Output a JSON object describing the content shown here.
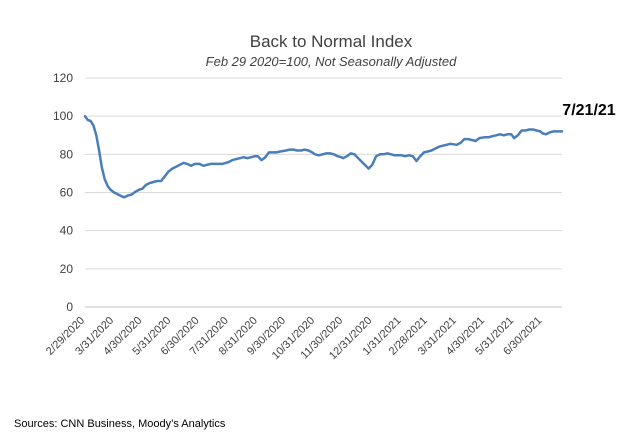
{
  "chart_data": {
    "type": "line",
    "title": "Back to Normal Index",
    "subtitle": "Feb 29 2020=100, Not Seasonally Adjusted",
    "xlabel": "",
    "ylabel": "",
    "ylim": [
      0,
      120
    ],
    "yticks": [
      0,
      20,
      40,
      60,
      80,
      100,
      120
    ],
    "xticks": [
      "2/29/2020",
      "3/31/2020",
      "4/30/2020",
      "5/31/2020",
      "6/30/2020",
      "7/31/2020",
      "8/31/2020",
      "9/30/2020",
      "10/31/2020",
      "11/30/2020",
      "12/31/2020",
      "1/31/2021",
      "2/28/2021",
      "3/31/2021",
      "4/30/2021",
      "5/31/2021",
      "6/30/2021"
    ],
    "x_start": "2020-02-29",
    "x_end": "2021-07-21",
    "grid": true,
    "color": "#4a7ebb",
    "series": [
      {
        "points": [
          [
            "2020-02-29",
            100
          ],
          [
            "2020-03-03",
            98
          ],
          [
            "2020-03-06",
            97.5
          ],
          [
            "2020-03-09",
            95
          ],
          [
            "2020-03-12",
            90
          ],
          [
            "2020-03-15",
            82
          ],
          [
            "2020-03-18",
            73
          ],
          [
            "2020-03-21",
            67
          ],
          [
            "2020-03-24",
            63.5
          ],
          [
            "2020-03-27",
            61.5
          ],
          [
            "2020-03-31",
            60
          ],
          [
            "2020-04-04",
            59
          ],
          [
            "2020-04-08",
            58
          ],
          [
            "2020-04-11",
            57.5
          ],
          [
            "2020-04-15",
            58.5
          ],
          [
            "2020-04-19",
            59
          ],
          [
            "2020-04-23",
            60.5
          ],
          [
            "2020-04-27",
            61.5
          ],
          [
            "2020-04-30",
            62
          ],
          [
            "2020-05-04",
            64
          ],
          [
            "2020-05-08",
            65
          ],
          [
            "2020-05-12",
            65.5
          ],
          [
            "2020-05-16",
            66
          ],
          [
            "2020-05-20",
            66
          ],
          [
            "2020-05-24",
            68.5
          ],
          [
            "2020-05-28",
            71
          ],
          [
            "2020-06-01",
            72.5
          ],
          [
            "2020-06-05",
            73.5
          ],
          [
            "2020-06-09",
            74.5
          ],
          [
            "2020-06-13",
            75.5
          ],
          [
            "2020-06-17",
            75
          ],
          [
            "2020-06-21",
            74
          ],
          [
            "2020-06-25",
            75
          ],
          [
            "2020-06-30",
            75
          ],
          [
            "2020-07-04",
            74
          ],
          [
            "2020-07-08",
            74.5
          ],
          [
            "2020-07-12",
            75
          ],
          [
            "2020-07-16",
            75
          ],
          [
            "2020-07-20",
            75
          ],
          [
            "2020-07-24",
            75
          ],
          [
            "2020-07-28",
            75.5
          ],
          [
            "2020-07-31",
            76
          ],
          [
            "2020-08-04",
            77
          ],
          [
            "2020-08-08",
            77.5
          ],
          [
            "2020-08-12",
            78
          ],
          [
            "2020-08-16",
            78.5
          ],
          [
            "2020-08-20",
            78
          ],
          [
            "2020-08-24",
            78.5
          ],
          [
            "2020-08-28",
            79
          ],
          [
            "2020-08-31",
            79
          ],
          [
            "2020-09-04",
            77
          ],
          [
            "2020-09-08",
            78.5
          ],
          [
            "2020-09-12",
            81
          ],
          [
            "2020-09-16",
            81
          ],
          [
            "2020-09-20",
            81
          ],
          [
            "2020-09-24",
            81.5
          ],
          [
            "2020-09-30",
            82
          ],
          [
            "2020-10-04",
            82.5
          ],
          [
            "2020-10-08",
            82.5
          ],
          [
            "2020-10-12",
            82
          ],
          [
            "2020-10-16",
            82
          ],
          [
            "2020-10-20",
            82.5
          ],
          [
            "2020-10-24",
            82
          ],
          [
            "2020-10-28",
            81
          ],
          [
            "2020-10-31",
            80
          ],
          [
            "2020-11-04",
            79.5
          ],
          [
            "2020-11-08",
            80
          ],
          [
            "2020-11-12",
            80.5
          ],
          [
            "2020-11-16",
            80.5
          ],
          [
            "2020-11-20",
            80
          ],
          [
            "2020-11-24",
            79
          ],
          [
            "2020-11-28",
            78.5
          ],
          [
            "2020-11-30",
            78
          ],
          [
            "2020-12-04",
            79
          ],
          [
            "2020-12-08",
            80.5
          ],
          [
            "2020-12-12",
            80
          ],
          [
            "2020-12-16",
            78
          ],
          [
            "2020-12-20",
            76
          ],
          [
            "2020-12-24",
            74
          ],
          [
            "2020-12-27",
            72.5
          ],
          [
            "2020-12-31",
            74.5
          ],
          [
            "2021-01-04",
            79
          ],
          [
            "2021-01-08",
            80
          ],
          [
            "2021-01-12",
            80
          ],
          [
            "2021-01-16",
            80.5
          ],
          [
            "2021-01-20",
            80
          ],
          [
            "2021-01-24",
            79.5
          ],
          [
            "2021-01-28",
            79.5
          ],
          [
            "2021-01-31",
            79.5
          ],
          [
            "2021-02-04",
            79
          ],
          [
            "2021-02-08",
            79.5
          ],
          [
            "2021-02-12",
            79
          ],
          [
            "2021-02-16",
            76.5
          ],
          [
            "2021-02-20",
            79
          ],
          [
            "2021-02-24",
            81
          ],
          [
            "2021-02-28",
            81.5
          ],
          [
            "2021-03-04",
            82
          ],
          [
            "2021-03-08",
            83
          ],
          [
            "2021-03-12",
            84
          ],
          [
            "2021-03-16",
            84.5
          ],
          [
            "2021-03-20",
            85
          ],
          [
            "2021-03-24",
            85.5
          ],
          [
            "2021-03-31",
            85
          ],
          [
            "2021-04-04",
            86
          ],
          [
            "2021-04-08",
            88
          ],
          [
            "2021-04-12",
            88
          ],
          [
            "2021-04-16",
            87.5
          ],
          [
            "2021-04-20",
            87
          ],
          [
            "2021-04-24",
            88.5
          ],
          [
            "2021-04-30",
            89
          ],
          [
            "2021-05-04",
            89
          ],
          [
            "2021-05-08",
            89.5
          ],
          [
            "2021-05-12",
            90
          ],
          [
            "2021-05-16",
            90.5
          ],
          [
            "2021-05-20",
            90
          ],
          [
            "2021-05-24",
            90.5
          ],
          [
            "2021-05-28",
            90.5
          ],
          [
            "2021-05-31",
            88.5
          ],
          [
            "2021-06-04",
            90
          ],
          [
            "2021-06-08",
            92.5
          ],
          [
            "2021-06-12",
            92.5
          ],
          [
            "2021-06-16",
            93
          ],
          [
            "2021-06-20",
            93
          ],
          [
            "2021-06-24",
            92.5
          ],
          [
            "2021-06-28",
            92
          ],
          [
            "2021-06-30",
            91
          ],
          [
            "2021-07-04",
            90.5
          ],
          [
            "2021-07-08",
            91.5
          ],
          [
            "2021-07-12",
            92
          ],
          [
            "2021-07-16",
            92
          ],
          [
            "2021-07-21",
            92
          ]
        ]
      }
    ],
    "annotations": [
      "7/21/21"
    ]
  },
  "footer": {
    "source": "Sources: CNN Business, Moody’s Analytics"
  }
}
